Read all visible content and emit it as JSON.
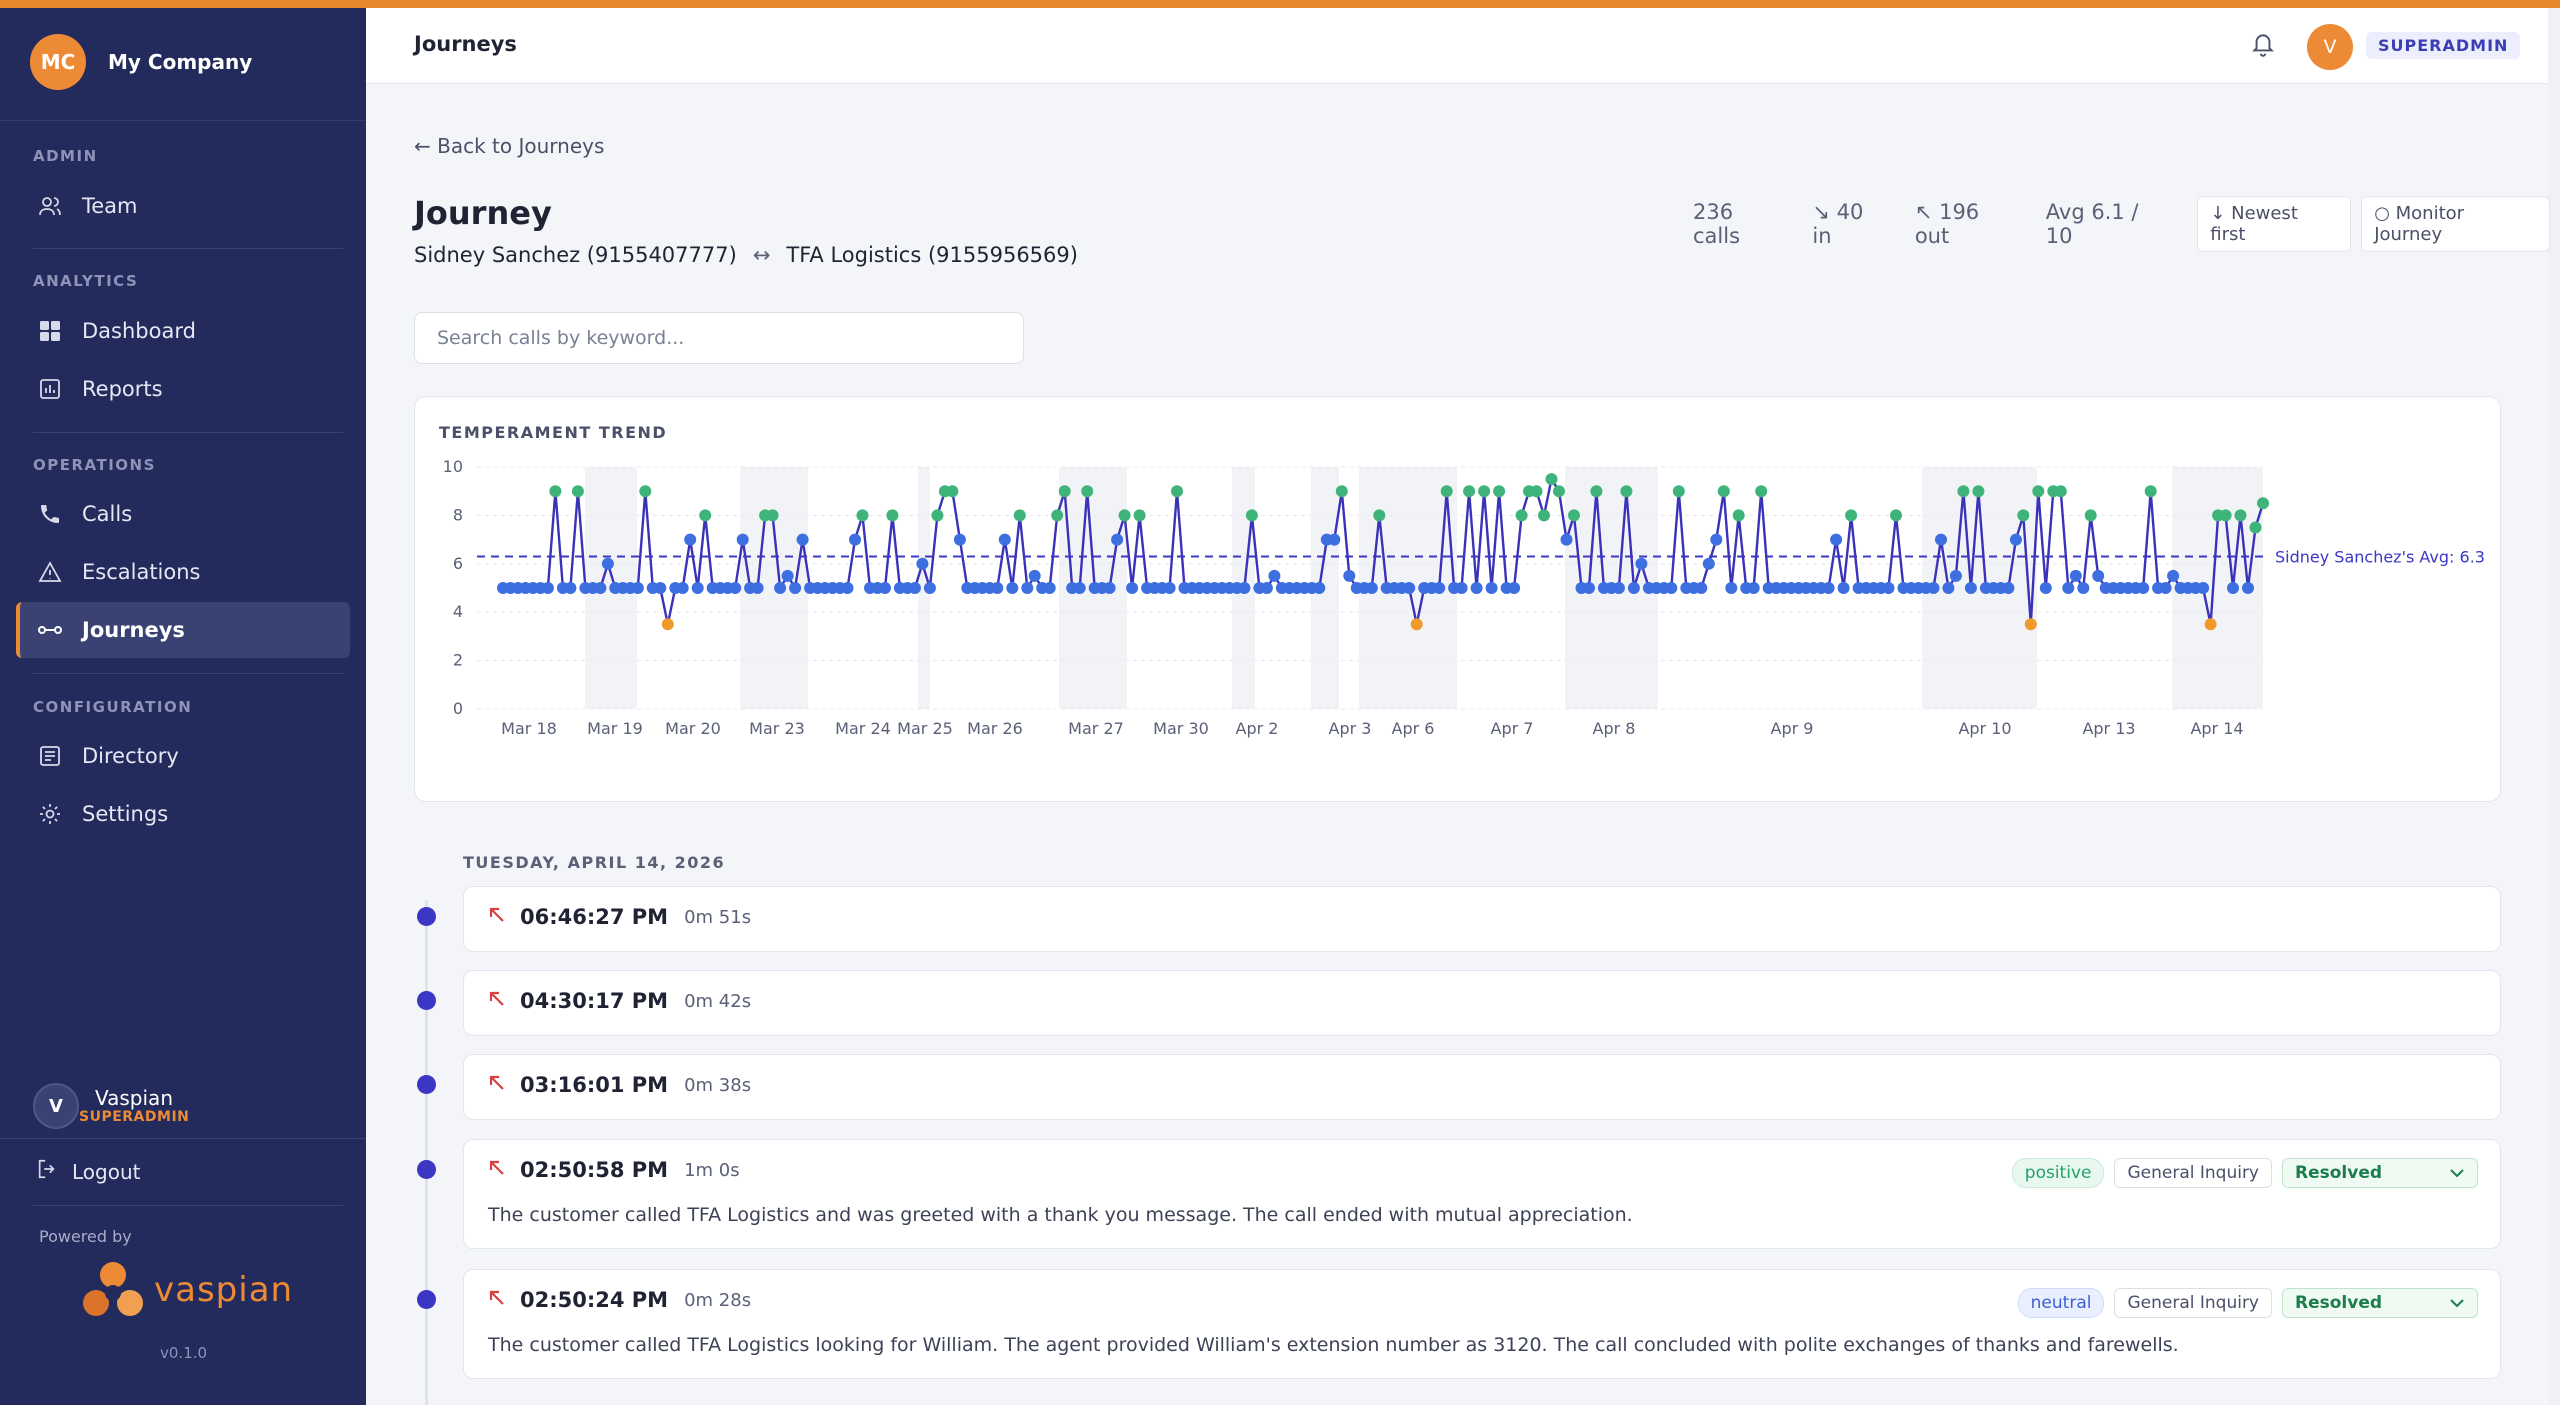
{
  "sidebar": {
    "company_initials": "MC",
    "company_name": "My Company",
    "sections": {
      "admin": "ADMIN",
      "analytics": "ANALYTICS",
      "operations": "OPERATIONS",
      "configuration": "CONFIGURATION"
    },
    "items": {
      "team": "Team",
      "dashboard": "Dashboard",
      "reports": "Reports",
      "calls": "Calls",
      "escalations": "Escalations",
      "journeys": "Journeys",
      "directory": "Directory",
      "settings": "Settings"
    },
    "user": {
      "initial": "V",
      "name": "Vaspian",
      "role": "SUPERADMIN"
    },
    "logout": "Logout",
    "powered_by": "Powered by",
    "logo_text": "vaspian",
    "version": "v0.1.0"
  },
  "header": {
    "title": "Journeys",
    "avatar_initial": "V",
    "role": "SUPERADMIN"
  },
  "journey": {
    "back": "← Back to Journeys",
    "title": "Journey",
    "party_a": "Sidney Sanchez (9155407777)",
    "party_b": "TFA Logistics (9155956569)",
    "stats": {
      "calls": "236 calls",
      "in": "↘ 40 in",
      "out": "↖ 196 out",
      "avg": "Avg 6.1 / 10"
    },
    "sort_button": "↓ Newest first",
    "monitor_button": "Monitor Journey",
    "search_placeholder": "Search calls by keyword..."
  },
  "chart_data": {
    "type": "line",
    "title": "TEMPERAMENT TREND",
    "ylim": [
      0,
      10
    ],
    "yticks": [
      "0",
      "2",
      "4",
      "6",
      "8",
      "10"
    ],
    "x_labels": [
      "Mar 18",
      "Mar 19",
      "Mar 20",
      "Mar 23",
      "Mar 24",
      "Mar 25",
      "Mar 26",
      "Mar 27",
      "Mar 30",
      "Apr 2",
      "Apr 3",
      "Apr 6",
      "Apr 7",
      "Apr 8",
      "Apr 9",
      "Apr 10",
      "Apr 13",
      "Apr 14"
    ],
    "average": 6.3,
    "average_label": "Sidney Sanchez's Avg: 6.3",
    "grid": true,
    "point_colors": {
      "high": "#3fb47a",
      "neutral": "#3d6fe0",
      "low": "#ef9a2b",
      "line": "#3a32b8",
      "avg": "#3b37c4"
    }
  },
  "timeline": {
    "day_label": "TUESDAY, APRIL 14, 2026",
    "calls": [
      {
        "time": "06:46:27 PM",
        "duration": "0m 51s"
      },
      {
        "time": "04:30:17 PM",
        "duration": "0m 42s"
      },
      {
        "time": "03:16:01 PM",
        "duration": "0m 38s"
      },
      {
        "time": "02:50:58 PM",
        "duration": "1m 0s",
        "sentiment": "positive",
        "category": "General Inquiry",
        "status": "Resolved",
        "summary": "The customer called TFA Logistics and was greeted with a thank you message. The call ended with mutual appreciation."
      },
      {
        "time": "02:50:24 PM",
        "duration": "0m 28s",
        "sentiment": "neutral",
        "category": "General Inquiry",
        "status": "Resolved",
        "summary": "The customer called TFA Logistics looking for William. The agent provided William's extension number as 3120. The call concluded with polite exchanges of thanks and farewells."
      }
    ]
  }
}
